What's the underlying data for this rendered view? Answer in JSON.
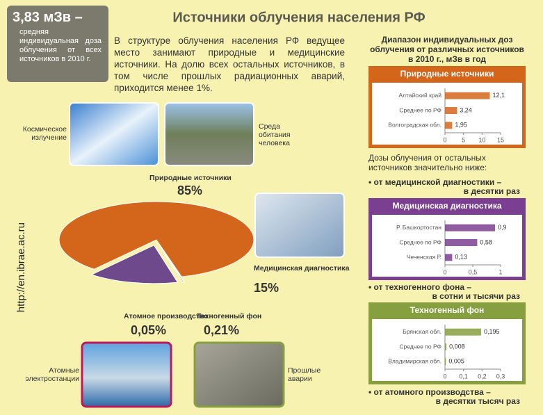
{
  "header": {
    "title": "Источники облучения населения РФ",
    "stat_value": "3,83 мЗв –",
    "stat_text": "средняя индивидуальная доза облучения от всех источников в 2010 г."
  },
  "intro": "В структуре облучения населения РФ ведущее место занимают природные и медицинские источники. На долю всех остальных источников, в том числе прошлых радиационных аварий, приходится менее 1%.",
  "side_url": "http://en.ibrae.ac.ru",
  "photos": [
    "Космическое излучение",
    "Среда обитания человека",
    "Атомные электростанции",
    "Прошлые аварии"
  ],
  "ranges_title": "Диапазон индивидуальных доз облучения от различных источников в 2010 г., мЗв в год",
  "notes": [
    "Дозы облучения от остальных источников значительно ниже:",
    "• от медицинской диагностики –",
    "в десятки раз",
    "• от техногенного фона –",
    "в сотни и тысячи раз",
    "• от атомного производства –",
    "в десятки тысяч раз"
  ],
  "chart_data": [
    {
      "type": "pie",
      "categories": [
        "Природные источники",
        "Медицинская диагностика",
        "Техногенный фон",
        "Атомное производство"
      ],
      "values": [
        85,
        15,
        0.21,
        0.05
      ],
      "value_labels": [
        "85%",
        "15%",
        "0,21%",
        "0,05%"
      ],
      "colors": [
        "#d4661c",
        "#6e4a8c",
        "#86a040",
        "#c0185a"
      ]
    },
    {
      "type": "hbar",
      "title": "Природные источники",
      "color": "#d4661c",
      "categories": [
        "Алтайский край",
        "Среднее по РФ",
        "Волгоградская обл."
      ],
      "values": [
        12.1,
        3.24,
        1.95
      ],
      "value_labels": [
        "12,1",
        "3,24",
        "1,95"
      ],
      "xlim": [
        0,
        15
      ],
      "xticks": [
        0,
        5,
        10,
        15
      ]
    },
    {
      "type": "hbar",
      "title": "Медицинская диагностика",
      "color": "#7b3f91",
      "categories": [
        "Р. Башкортостан",
        "Среднее по РФ",
        "Чеченская Р."
      ],
      "values": [
        0.9,
        0.58,
        0.13
      ],
      "value_labels": [
        "0,9",
        "0,58",
        "0,13"
      ],
      "xlim": [
        0,
        1
      ],
      "xticks": [
        0,
        {
          "value": 0.5,
          "label": "0,5"
        },
        1
      ]
    },
    {
      "type": "hbar",
      "title": "Техногенный фон",
      "color": "#86a040",
      "categories": [
        "Брянская обл.",
        "Среднее по РФ",
        "Владимирская обл."
      ],
      "values": [
        0.195,
        0.008,
        0.005
      ],
      "value_labels": [
        "0,195",
        "0,008",
        "0,005"
      ],
      "xlim": [
        0,
        0.3
      ],
      "xticks": [
        0,
        {
          "value": 0.1,
          "label": "0,1"
        },
        {
          "value": 0.2,
          "label": "0,2"
        },
        {
          "value": 0.3,
          "label": "0,3"
        }
      ]
    }
  ]
}
